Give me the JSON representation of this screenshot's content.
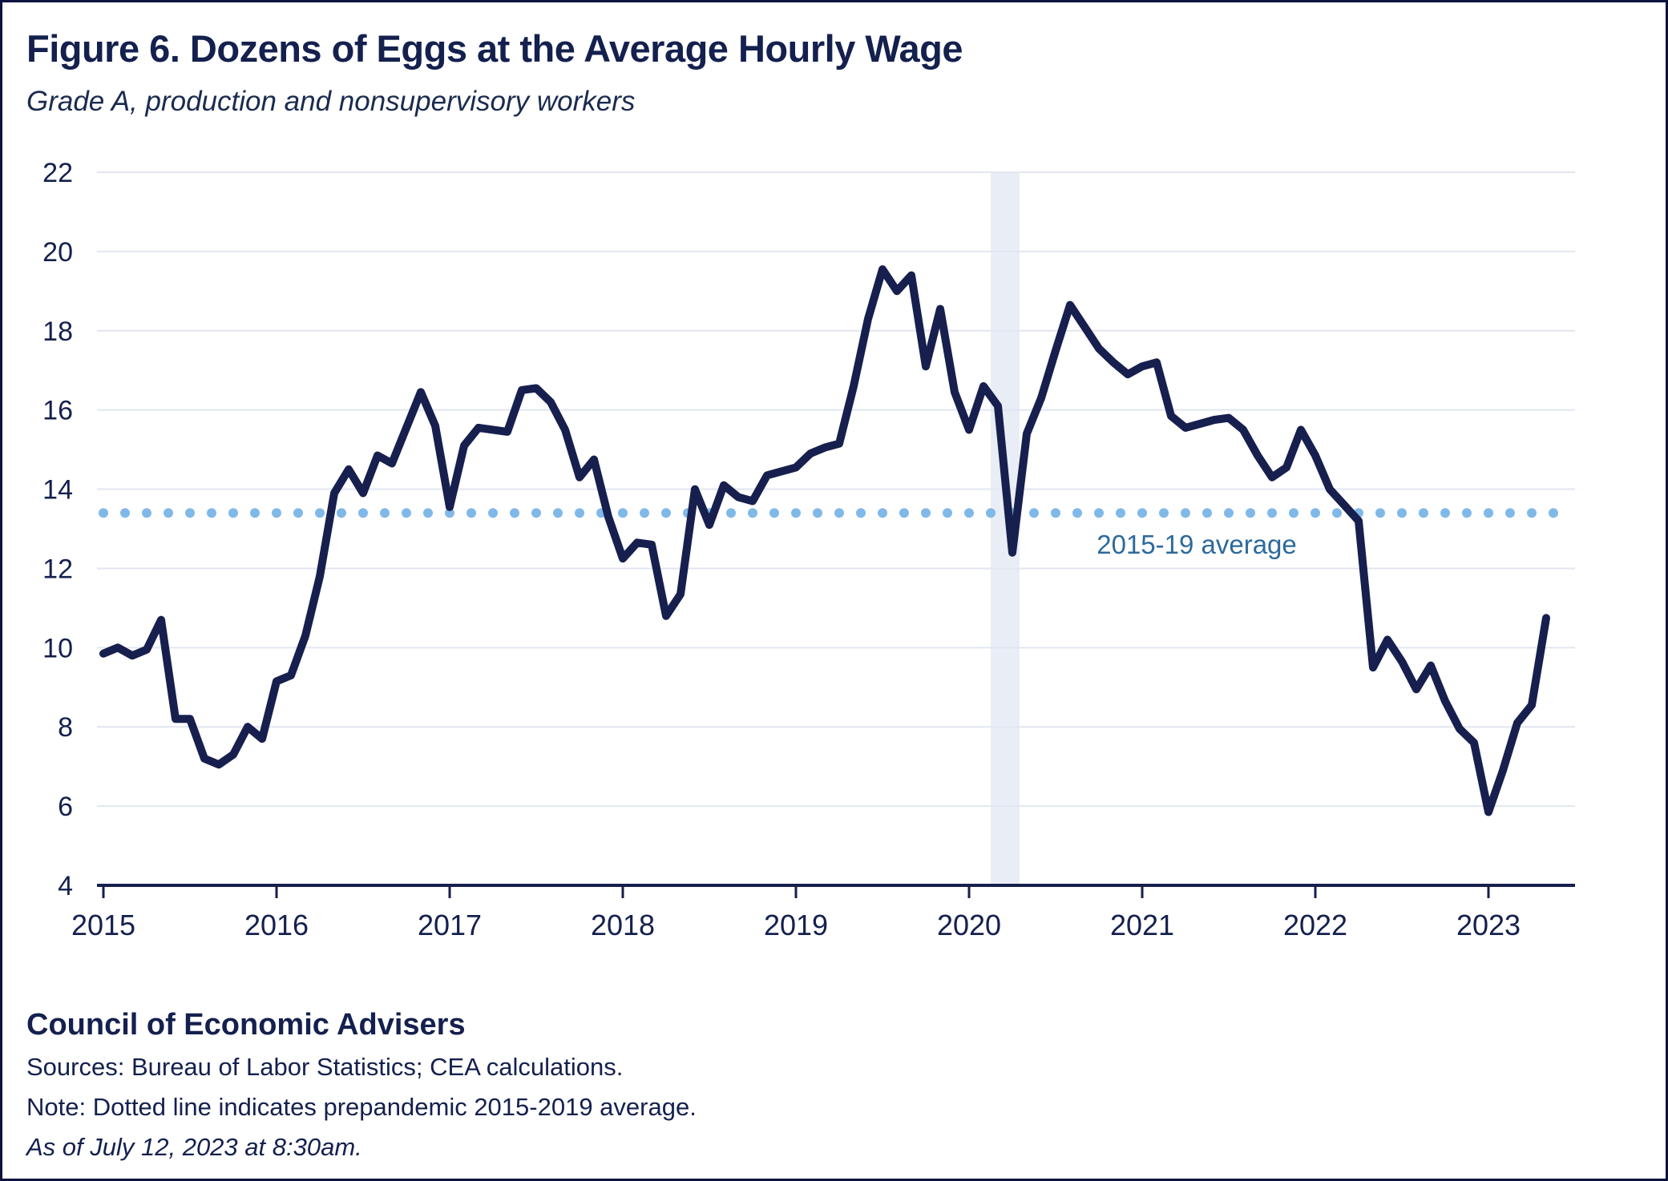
{
  "page": {
    "title": "Figure 6. Dozens of Eggs at the Average Hourly Wage",
    "subtitle": "Grade A, production and nonsupervisory workers"
  },
  "footer": {
    "org": "Council of Economic Advisers",
    "sources": "Sources: Bureau of Labor Statistics; CEA calculations.",
    "note": "Note: Dotted line indicates prepandemic 2015-2019 average.",
    "asof": "As of July 12, 2023 at 8:30am."
  },
  "chart_data": {
    "type": "line",
    "title": "Figure 6. Dozens of Eggs at the Average Hourly Wage",
    "subtitle": "Grade A, production and nonsupervisory workers",
    "frequency": "monthly",
    "x_start": "2015-01",
    "x_end": "2023-05",
    "ylim": [
      4,
      22
    ],
    "yticks": [
      4,
      6,
      8,
      10,
      12,
      14,
      16,
      18,
      20,
      22
    ],
    "xticks": [
      "2015",
      "2016",
      "2017",
      "2018",
      "2019",
      "2020",
      "2021",
      "2022",
      "2023"
    ],
    "grid": "horizontal",
    "legend": "none",
    "average_line": {
      "value": 13.4,
      "label": "2015-19 average",
      "style": "dotted"
    },
    "recession_shading": {
      "start": "2020-02",
      "end": "2020-04"
    },
    "series": [
      {
        "name": "Dozens of eggs at the average hourly wage",
        "values": [
          9.85,
          10.0,
          9.8,
          9.95,
          10.7,
          8.2,
          8.2,
          7.2,
          7.05,
          7.3,
          8.0,
          7.7,
          9.15,
          9.3,
          10.3,
          11.8,
          13.9,
          14.5,
          13.9,
          14.85,
          14.65,
          15.55,
          16.45,
          15.6,
          13.55,
          15.1,
          15.55,
          15.5,
          15.45,
          16.5,
          16.55,
          16.2,
          15.5,
          14.3,
          14.75,
          13.3,
          12.25,
          12.65,
          12.6,
          10.8,
          11.35,
          14.0,
          13.1,
          14.1,
          13.8,
          13.7,
          14.35,
          14.45,
          14.55,
          14.9,
          15.05,
          15.15,
          16.6,
          18.3,
          19.55,
          19.0,
          19.4,
          17.1,
          18.55,
          16.45,
          15.5,
          16.6,
          16.1,
          12.4,
          15.4,
          16.3,
          17.5,
          18.65,
          18.1,
          17.55,
          17.2,
          16.9,
          17.1,
          17.2,
          15.85,
          15.55,
          15.65,
          15.75,
          15.8,
          15.5,
          14.85,
          14.3,
          14.55,
          15.5,
          14.85,
          14.0,
          13.6,
          13.2,
          9.5,
          10.2,
          9.65,
          8.95,
          9.55,
          8.65,
          7.95,
          7.6,
          5.85,
          6.9,
          8.1,
          8.55,
          10.75
        ]
      }
    ],
    "colors": {
      "line": "#171f4e",
      "average_dots": "#80b9e8",
      "average_label": "#2c6a9d",
      "recession_band": "#e9edf5",
      "gridline": "#e2e6f0",
      "axis_text": "#14204e",
      "background": "#ffffff"
    }
  }
}
